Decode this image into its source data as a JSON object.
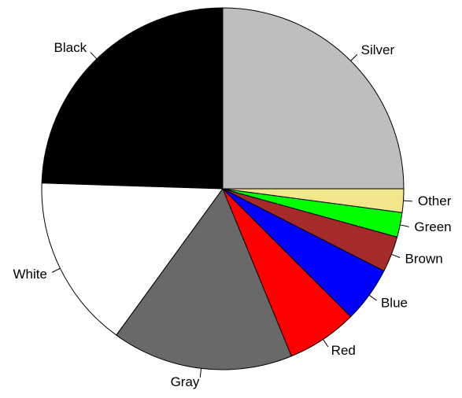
{
  "chart_data": {
    "type": "pie",
    "title": "",
    "start_angle_deg": 0,
    "direction": "counterclockwise",
    "slices": [
      {
        "label": "Silver",
        "value": 25.0,
        "color": "#BEBEBE"
      },
      {
        "label": "Black",
        "value": 24.5,
        "color": "#000000"
      },
      {
        "label": "White",
        "value": 15.5,
        "color": "#FFFFFF"
      },
      {
        "label": "Gray",
        "value": 16.2,
        "color": "#696969"
      },
      {
        "label": "Red",
        "value": 6.3,
        "color": "#FF0000"
      },
      {
        "label": "Blue",
        "value": 5.0,
        "color": "#0000FF"
      },
      {
        "label": "Brown",
        "value": 3.2,
        "color": "#A52A2A"
      },
      {
        "label": "Green",
        "value": 2.2,
        "color": "#00FF00"
      },
      {
        "label": "Other",
        "value": 2.1,
        "color": "#F0E68C"
      }
    ]
  }
}
